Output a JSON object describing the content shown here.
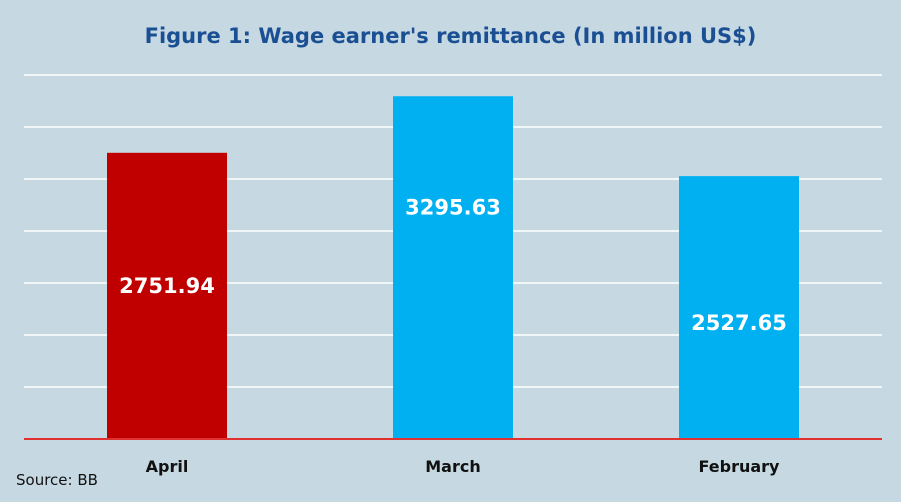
{
  "chart_data": {
    "type": "bar",
    "title": "Figure 1: Wage earner's remittance (In million US$)",
    "xlabel": "",
    "ylabel": "",
    "categories": [
      "April",
      "March",
      "February"
    ],
    "values": [
      2751.94,
      3295.63,
      2527.65
    ],
    "data_labels": [
      "2751.94",
      "3295.63",
      "2527.65"
    ],
    "bar_colors": [
      "#c00000",
      "#00b0f0",
      "#00b0f0"
    ],
    "ylim": [
      0,
      3500
    ],
    "grid_step": 500,
    "grid": true,
    "legend": "none"
  },
  "source": "Source: BB",
  "colors": {
    "background": "#c6d9e2",
    "title": "#1b4f93",
    "baseline": "#e03030",
    "grid": "#ffffff",
    "data_label": "#ffffff"
  }
}
